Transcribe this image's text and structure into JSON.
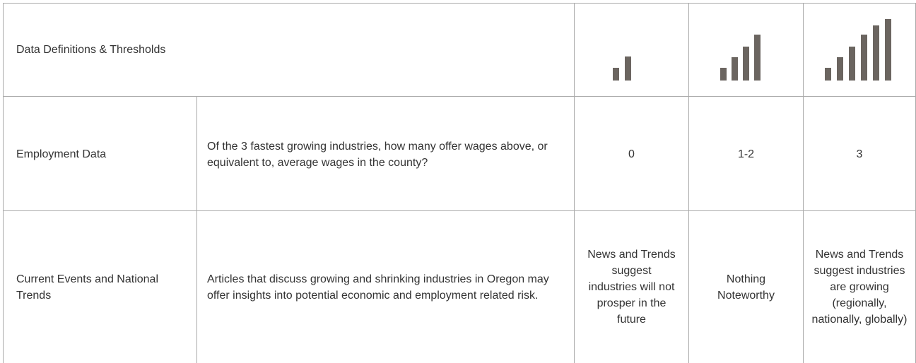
{
  "table": {
    "title": "Data Definitions & Thresholds",
    "rows": [
      [
        "Employment Data",
        "Of the 3 fastest growing industries, how many offer wages above, or equivalent to, average wages in the county?",
        "0",
        "1-2",
        "3"
      ],
      [
        "Current Events and National Trends",
        "Articles that discuss growing and shrinking industries in Oregon may offer insights into potential economic and employment related risk.",
        "News and Trends suggest industries will not prosper in the future",
        "Nothing Noteworthy",
        "News and Trends suggest industries are growing (regionally, nationally, globally)"
      ]
    ]
  }
}
